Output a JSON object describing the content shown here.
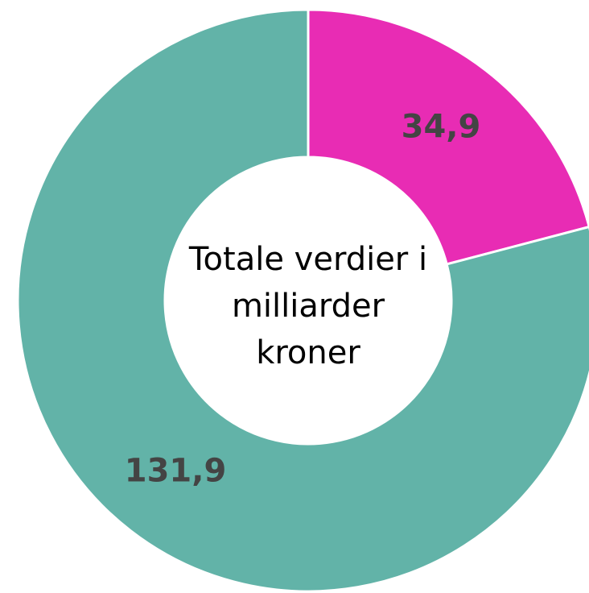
{
  "chart_data": {
    "type": "donut",
    "title": "Totale verdier i milliarder kroner",
    "values": [
      34.9,
      131.9
    ],
    "value_labels": [
      "34,9",
      "131,9"
    ],
    "colors": [
      "#e82cb4",
      "#62b3a8"
    ]
  }
}
